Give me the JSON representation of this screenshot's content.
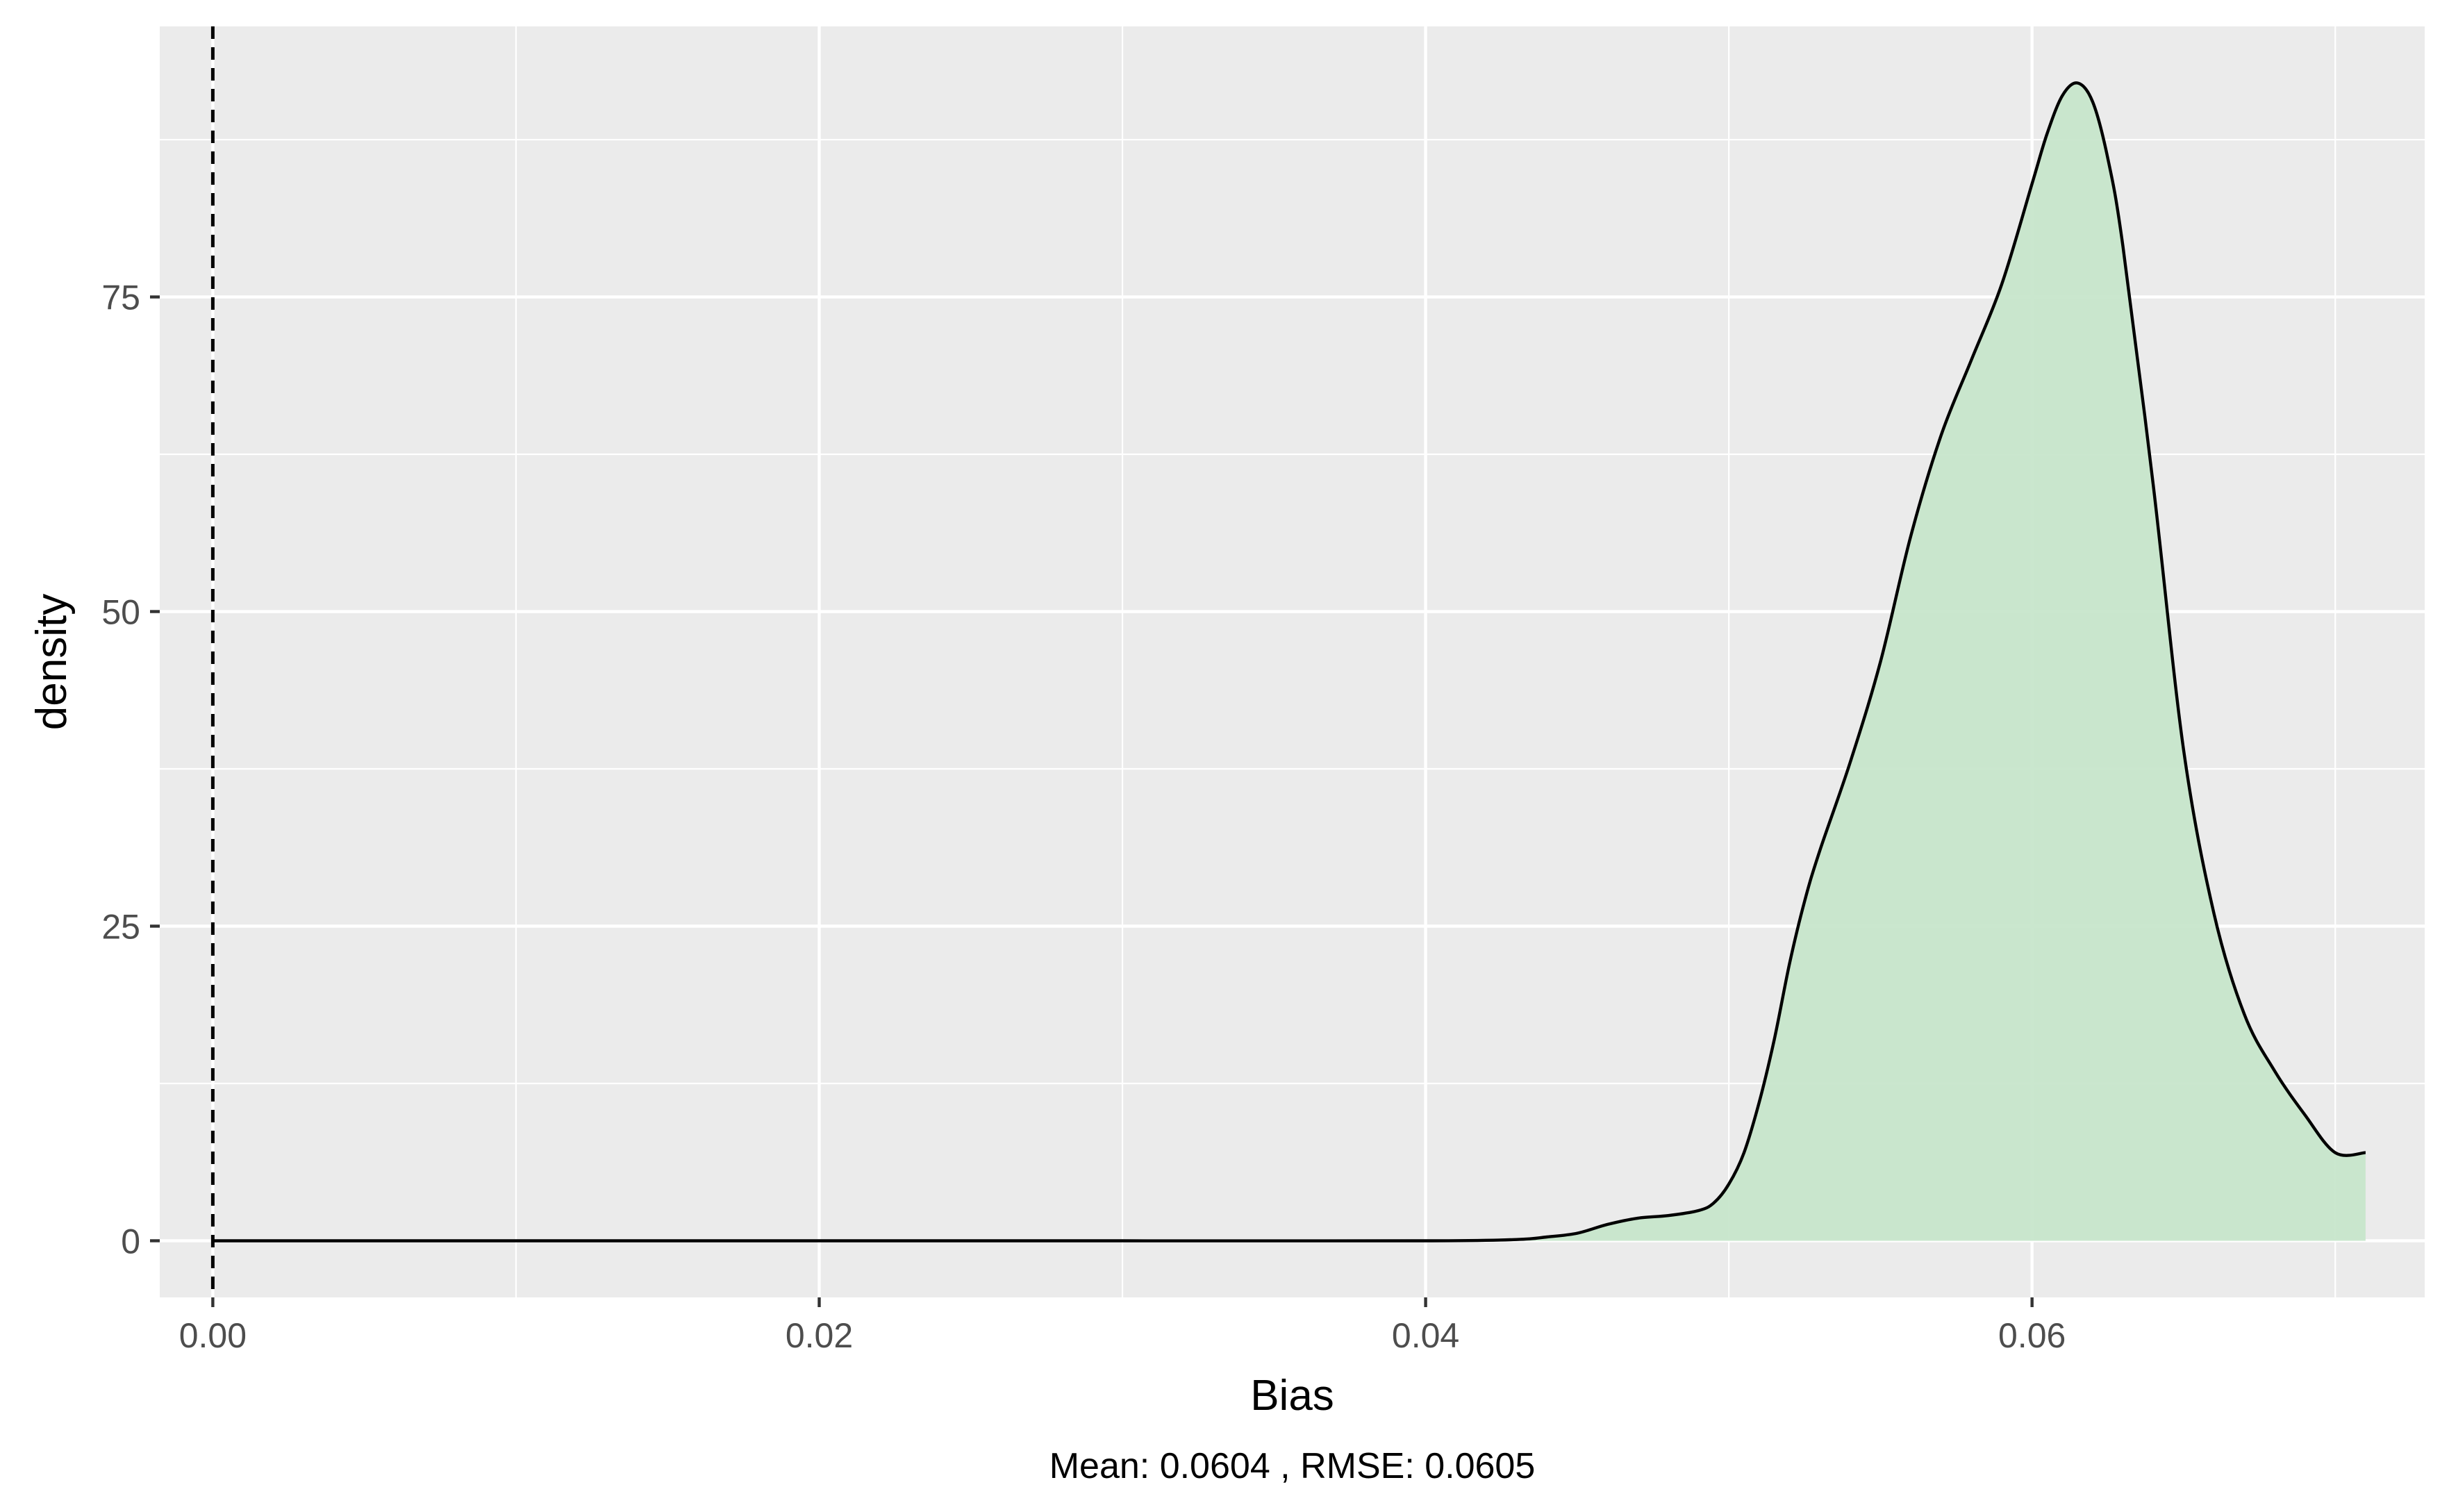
{
  "chart_data": {
    "type": "area",
    "title": "",
    "xlabel": "Bias",
    "ylabel": "density",
    "caption": "Mean: 0.0604 , RMSE: 0.0605",
    "xlim": [
      -0.00175,
      0.07295
    ],
    "ylim": [
      -4.5,
      96.5
    ],
    "x_ticks": [
      {
        "value": 0.0,
        "label": "0.00"
      },
      {
        "value": 0.02,
        "label": "0.02"
      },
      {
        "value": 0.04,
        "label": "0.04"
      },
      {
        "value": 0.06,
        "label": "0.06"
      }
    ],
    "y_ticks": [
      {
        "value": 0,
        "label": "0"
      },
      {
        "value": 25,
        "label": "25"
      },
      {
        "value": 50,
        "label": "50"
      },
      {
        "value": 75,
        "label": "75"
      }
    ],
    "reference_line": {
      "x": 0,
      "style": "dashed"
    },
    "grid": true,
    "colors": {
      "panel": "#ebebeb",
      "grid": "#ffffff",
      "fill": "#c7e6cb",
      "line": "#000000",
      "tick_text": "#4d4d4d"
    },
    "series": [
      {
        "x": [
          0.0,
          0.01,
          0.02,
          0.03,
          0.04,
          0.043,
          0.044,
          0.045,
          0.046,
          0.047,
          0.048,
          0.049,
          0.0495,
          0.05,
          0.0505,
          0.051,
          0.0515,
          0.052,
          0.0525,
          0.053,
          0.054,
          0.055,
          0.056,
          0.057,
          0.058,
          0.059,
          0.06,
          0.0605,
          0.061,
          0.0615,
          0.062,
          0.0625,
          0.063,
          0.064,
          0.065,
          0.066,
          0.067,
          0.068,
          0.069,
          0.07,
          0.071
        ],
        "y": [
          0,
          0,
          0,
          0,
          0,
          0.1,
          0.3,
          0.6,
          1.3,
          1.8,
          2.0,
          2.4,
          3.0,
          4.5,
          7.0,
          11,
          16,
          22,
          27,
          31,
          38,
          46,
          56,
          64,
          70,
          76,
          84,
          88,
          91,
          92,
          90.5,
          86,
          79,
          60,
          39,
          26,
          18,
          13.5,
          10,
          7,
          7
        ]
      }
    ]
  }
}
